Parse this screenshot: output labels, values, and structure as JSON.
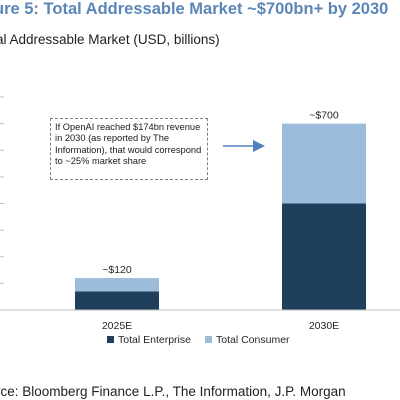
{
  "title": "ure 5: Total Addressable Market ~$700bn+ by 2030",
  "subtitle": "al Addressable Market (USD, billions)",
  "source": "rce: Bloomberg Finance L.P., The Information, J.P. Morgan",
  "callout": "If OpenAI reached $174bn revenue in 2030 (as reported by The Information), that would correspond to ~25% market share",
  "colors": {
    "enterprise": "#203f5c",
    "consumer": "#9bbcdb",
    "arrow": "#4f81bd",
    "title": "#5b86b6"
  },
  "chart_data": {
    "type": "bar",
    "stacked": true,
    "categories": [
      "2025E",
      "2030E"
    ],
    "series": [
      {
        "name": "Total Enterprise",
        "values": [
          70,
          400
        ]
      },
      {
        "name": "Total Consumer",
        "values": [
          50,
          300
        ]
      }
    ],
    "data_labels": [
      "~$120",
      "~$700"
    ],
    "ylim": [
      0,
      800
    ],
    "grid": false,
    "legend": "bottom"
  }
}
